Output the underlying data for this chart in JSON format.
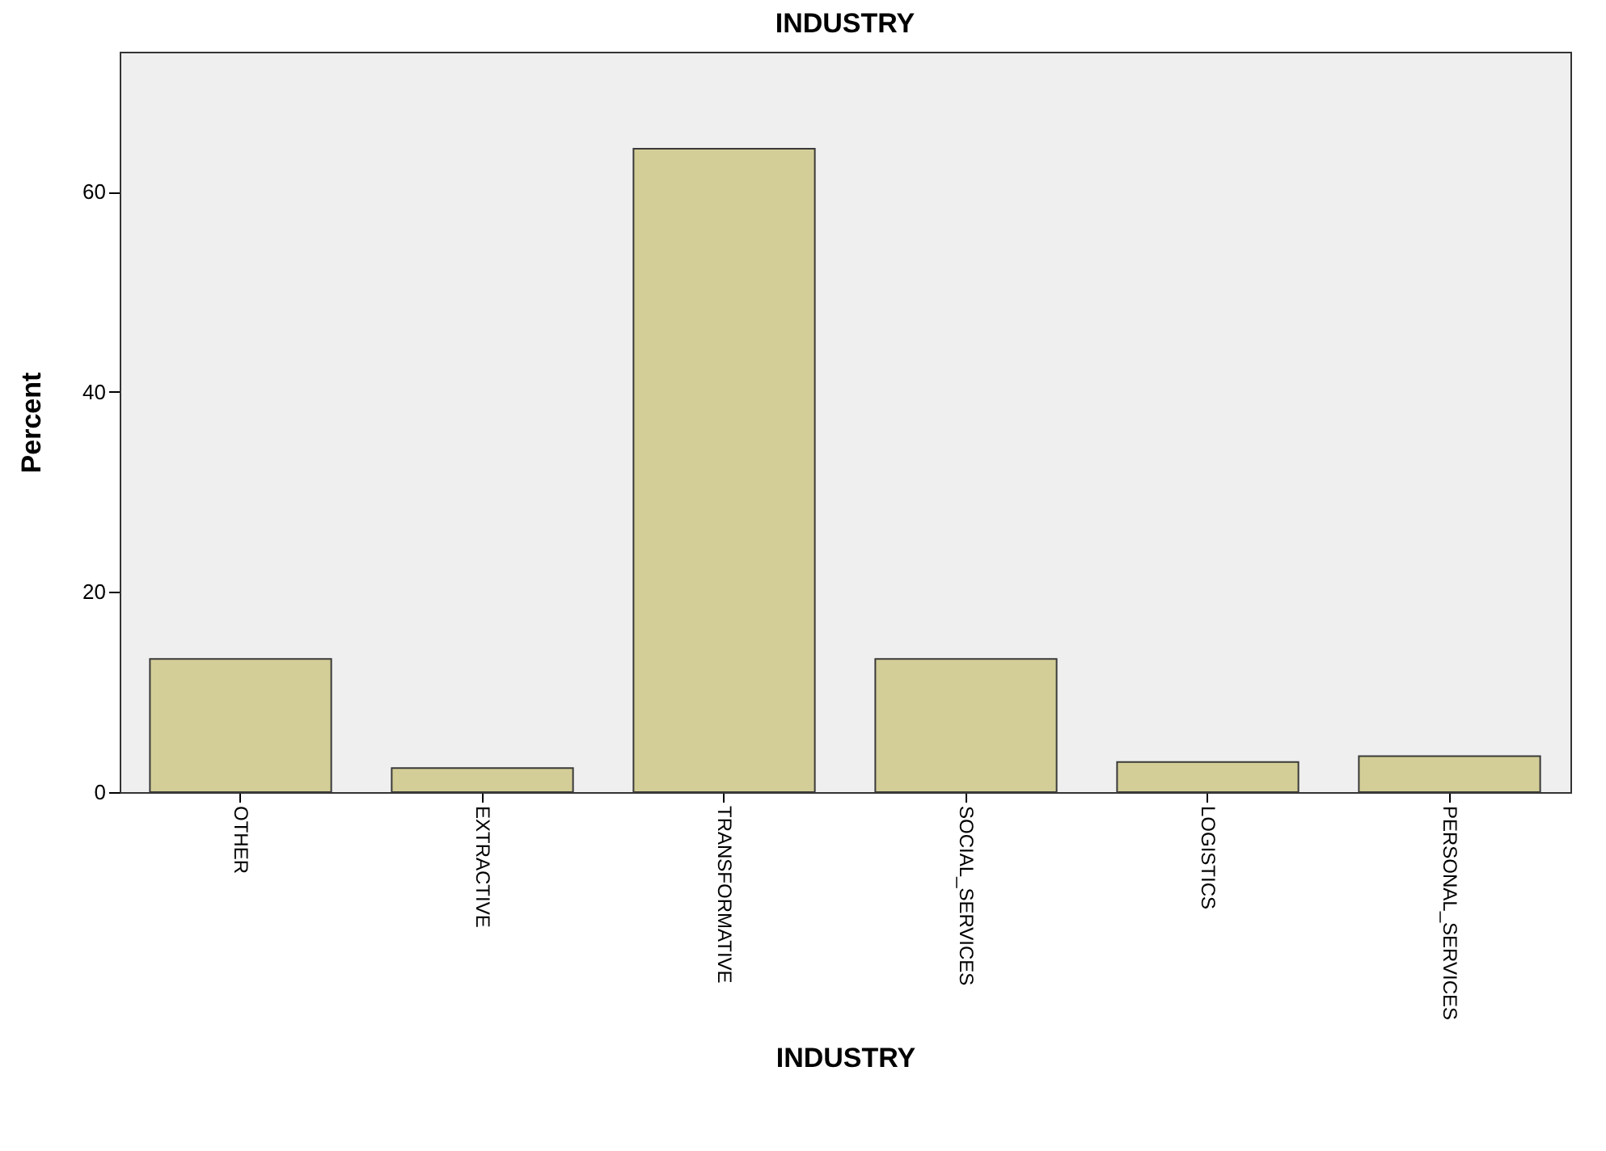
{
  "chart_data": {
    "type": "bar",
    "title": "INDUSTRY",
    "xlabel": "INDUSTRY",
    "ylabel": "Percent",
    "categories": [
      "OTHER",
      "EXTRACTIVE",
      "TRANSFORMATIVE",
      "SOCIAL_SERVICES",
      "LOGISTICS",
      "PERSONAL_SERVICES"
    ],
    "values": [
      13.3,
      2.4,
      64.3,
      13.3,
      3.0,
      3.6
    ],
    "color": "#d3ce97",
    "ylim": [
      0,
      74
    ],
    "yticks": [
      0,
      20,
      40,
      60
    ],
    "grid": false
  }
}
